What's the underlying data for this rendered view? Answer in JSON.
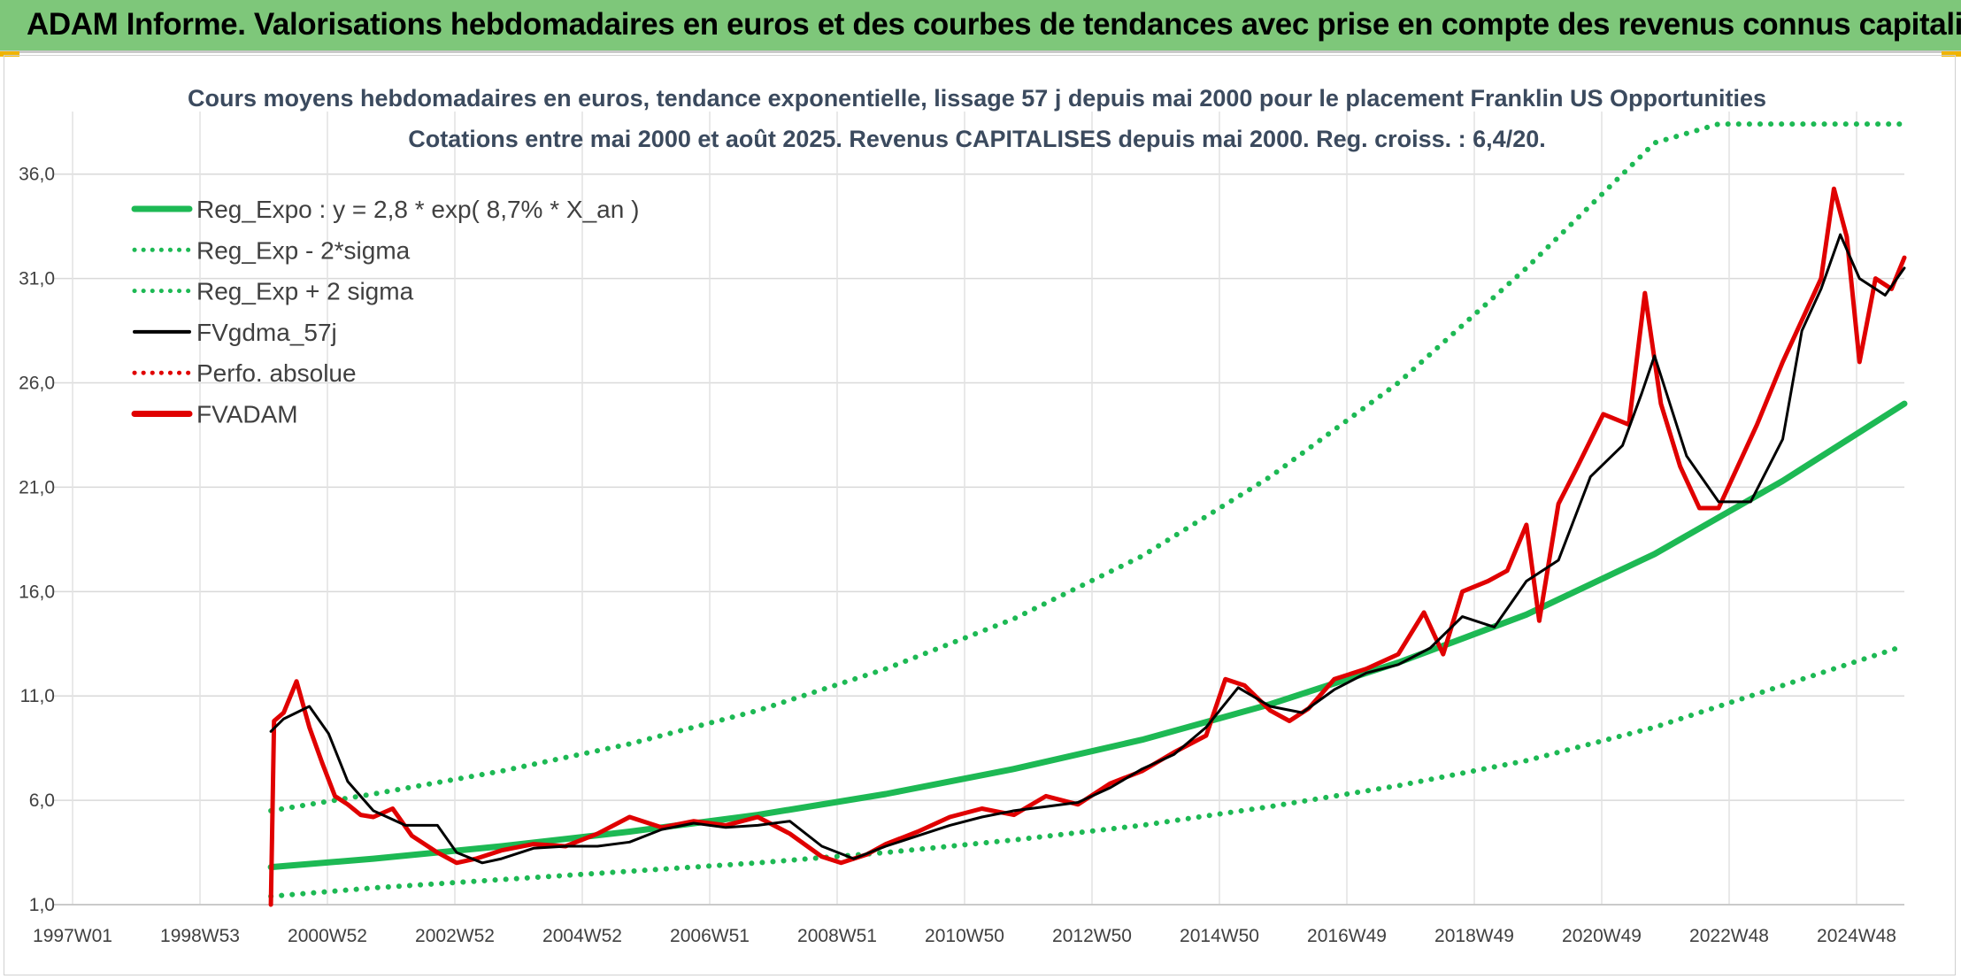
{
  "banner": {
    "title": "ADAM Informe. Valorisations hebdomadaires en euros et des courbes de tendances avec prise en compte des revenus connus capitalisés",
    "background": "#7ec77a"
  },
  "chart_data": {
    "type": "line",
    "title_line1": "Cours moyens hebdomadaires en euros, tendance exponentielle, lissage 57 j depuis mai 2000 pour le placement Franklin US Opportunities",
    "title_line2": "Cotations entre mai 2000 et août 2025. Revenus CAPITALISES depuis mai 2000. Reg. croiss. : 6,4/20.",
    "x_tick_labels": [
      "1997W01",
      "1998W53",
      "2000W52",
      "2002W52",
      "2004W52",
      "2006W51",
      "2008W51",
      "2010W50",
      "2012W50",
      "2014W50",
      "2016W49",
      "2018W49",
      "2020W49",
      "2022W48",
      "2024W48"
    ],
    "x_range": [
      1997.0,
      2025.9
    ],
    "y_tick_labels": [
      "1,0",
      "6,0",
      "11,0",
      "16,0",
      "21,0",
      "26,0",
      "31,0",
      "36,0"
    ],
    "y_ticks": [
      1,
      6,
      11,
      16,
      21,
      26,
      31,
      36
    ],
    "ylim": [
      1,
      39
    ],
    "grid": true,
    "legend_position": "top-left",
    "legend": [
      {
        "label": "Reg_Expo : y = 2,8 * exp( 8,7% *  X_an )",
        "style": "solid-thick",
        "color": "#1db954"
      },
      {
        "label": "Reg_Exp - 2*sigma",
        "style": "dotted",
        "color": "#1db954"
      },
      {
        "label": "Reg_Exp + 2 sigma",
        "style": "dotted",
        "color": "#1db954"
      },
      {
        "label": "FVgdma_57j",
        "style": "solid",
        "color": "#000000"
      },
      {
        "label": "Perfo. absolue",
        "style": "dotted",
        "color": "#e00000"
      },
      {
        "label": "FVADAM",
        "style": "solid-thick",
        "color": "#e00000"
      }
    ],
    "series": [
      {
        "name": "Reg_Expo : y = 2,8 * exp( 8,7% *  X_an )",
        "color": "#1db954",
        "x": [
          2000.4,
          2002.0,
          2004.0,
          2006.0,
          2008.0,
          2010.0,
          2012.0,
          2014.0,
          2016.0,
          2018.0,
          2020.0,
          2022.0,
          2024.0,
          2025.9
        ],
        "values": [
          2.8,
          3.2,
          3.8,
          4.5,
          5.3,
          6.3,
          7.5,
          8.9,
          10.6,
          12.6,
          14.9,
          17.8,
          21.3,
          25.0
        ]
      },
      {
        "name": "Reg_Exp - 2*sigma",
        "color": "#1db954",
        "x": [
          2000.4,
          2002.0,
          2004.0,
          2006.0,
          2008.0,
          2010.0,
          2012.0,
          2014.0,
          2016.0,
          2018.0,
          2020.0,
          2022.0,
          2024.0,
          2025.9
        ],
        "values": [
          1.4,
          1.8,
          2.2,
          2.6,
          3.0,
          3.5,
          4.1,
          4.8,
          5.7,
          6.7,
          7.9,
          9.5,
          11.5,
          13.4
        ]
      },
      {
        "name": "Reg_Exp + 2 sigma",
        "color": "#1db954",
        "x": [
          2000.4,
          2002.0,
          2004.0,
          2006.0,
          2008.0,
          2010.0,
          2012.0,
          2014.0,
          2016.0,
          2018.0,
          2020.0,
          2021.0,
          2022.0,
          2023.0,
          2024.0,
          2025.9
        ],
        "values": [
          5.5,
          6.3,
          7.4,
          8.7,
          10.3,
          12.3,
          14.7,
          17.7,
          21.5,
          26.0,
          31.5,
          34.5,
          37.5,
          40.0,
          40.0,
          40.0
        ]
      },
      {
        "name": "FVgdma_57j",
        "color": "#000000",
        "x": [
          2000.4,
          2000.6,
          2001.0,
          2001.3,
          2001.6,
          2002.0,
          2002.5,
          2003.0,
          2003.3,
          2003.7,
          2004.0,
          2004.5,
          2005.0,
          2005.5,
          2006.0,
          2006.5,
          2007.0,
          2007.5,
          2008.0,
          2008.5,
          2009.0,
          2009.5,
          2010.0,
          2010.5,
          2011.0,
          2011.5,
          2012.0,
          2012.5,
          2013.0,
          2013.5,
          2014.0,
          2014.5,
          2015.0,
          2015.5,
          2016.0,
          2016.5,
          2017.0,
          2017.5,
          2018.0,
          2018.5,
          2019.0,
          2019.5,
          2020.0,
          2020.5,
          2021.0,
          2021.5,
          2021.8,
          2022.0,
          2022.5,
          2023.0,
          2023.5,
          2024.0,
          2024.3,
          2024.6,
          2024.9,
          2025.2,
          2025.6,
          2025.9
        ],
        "values": [
          9.3,
          9.9,
          10.5,
          9.2,
          6.9,
          5.5,
          4.8,
          4.8,
          3.5,
          3.0,
          3.2,
          3.7,
          3.8,
          3.8,
          4.0,
          4.6,
          4.9,
          4.7,
          4.8,
          5.0,
          3.8,
          3.2,
          3.8,
          4.3,
          4.8,
          5.2,
          5.5,
          5.7,
          5.9,
          6.6,
          7.5,
          8.2,
          9.5,
          11.4,
          10.5,
          10.2,
          11.3,
          12.1,
          12.5,
          13.3,
          14.8,
          14.3,
          16.5,
          17.5,
          21.5,
          23.0,
          25.5,
          27.3,
          22.5,
          20.3,
          20.3,
          23.3,
          28.5,
          30.5,
          33.1,
          31.0,
          30.2,
          31.5
        ]
      },
      {
        "name": "FVADAM",
        "color": "#e00000",
        "x": [
          2000.4,
          2000.45,
          2000.6,
          2000.8,
          2001.0,
          2001.2,
          2001.4,
          2001.6,
          2001.8,
          2002.0,
          2002.3,
          2002.6,
          2003.0,
          2003.3,
          2003.6,
          2004.0,
          2004.5,
          2005.0,
          2005.5,
          2006.0,
          2006.5,
          2007.0,
          2007.5,
          2008.0,
          2008.5,
          2009.0,
          2009.3,
          2009.7,
          2010.0,
          2010.5,
          2011.0,
          2011.5,
          2012.0,
          2012.5,
          2013.0,
          2013.5,
          2014.0,
          2014.5,
          2015.0,
          2015.3,
          2015.6,
          2016.0,
          2016.3,
          2016.6,
          2017.0,
          2017.5,
          2018.0,
          2018.4,
          2018.7,
          2019.0,
          2019.4,
          2019.7,
          2020.0,
          2020.2,
          2020.5,
          2020.8,
          2021.2,
          2021.6,
          2021.85,
          2022.1,
          2022.4,
          2022.7,
          2023.0,
          2023.3,
          2023.6,
          2024.0,
          2024.3,
          2024.6,
          2024.8,
          2025.0,
          2025.2,
          2025.45,
          2025.7,
          2025.9
        ],
        "values": [
          1.0,
          9.8,
          10.2,
          11.7,
          9.5,
          7.8,
          6.2,
          5.8,
          5.3,
          5.2,
          5.6,
          4.3,
          3.5,
          3.0,
          3.2,
          3.6,
          3.9,
          3.8,
          4.4,
          5.2,
          4.7,
          5.0,
          4.8,
          5.2,
          4.4,
          3.3,
          3.0,
          3.4,
          3.9,
          4.5,
          5.2,
          5.6,
          5.3,
          6.2,
          5.8,
          6.8,
          7.4,
          8.3,
          9.1,
          11.8,
          11.5,
          10.3,
          9.8,
          10.4,
          11.8,
          12.3,
          13.0,
          15.0,
          13.0,
          16.0,
          16.5,
          17.0,
          19.2,
          14.6,
          20.2,
          22.0,
          24.5,
          24.0,
          30.3,
          25.0,
          22.0,
          20.0,
          20.0,
          22.0,
          24.0,
          27.0,
          29.0,
          31.0,
          35.3,
          33.0,
          27.0,
          31.0,
          30.5,
          32.0
        ]
      }
    ]
  }
}
